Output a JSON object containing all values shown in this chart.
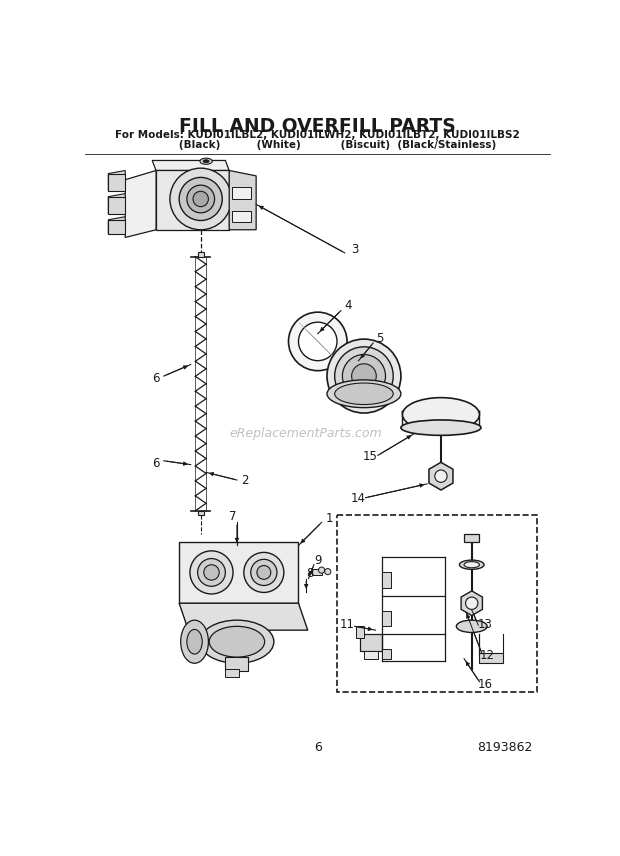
{
  "title_line1": "FILL AND OVERFILL PARTS",
  "title_line2": "For Models: KUDI01ILBL2, KUDI01ILWH2, KUDI01ILBT2, KUDI01ILBS2",
  "title_line3": "           (Black)          (White)           (Biscuit)  (Black/Stainless)",
  "page_number": "6",
  "part_number": "8193862",
  "watermark": "eReplacementParts.com",
  "bg_color": "#ffffff",
  "lc": "#1a1a1a",
  "gf": "#d8d8d8",
  "lf": "#f0f0f0",
  "wf": "#ffffff"
}
